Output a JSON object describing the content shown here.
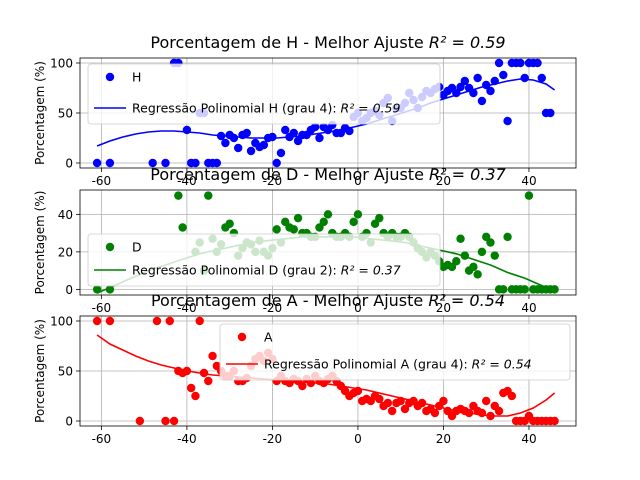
{
  "chart_data": [
    {
      "type": "scatter",
      "title": "Porcentagem de H - Melhor Ajuste",
      "r2_label": "R² = 0.59",
      "xlabel": "",
      "ylabel": "Porcentagem (%)",
      "xlim": [
        -65,
        51
      ],
      "ylim": [
        -5,
        105
      ],
      "xticks": [
        -60,
        -40,
        -20,
        0,
        20,
        40
      ],
      "yticks": [
        0,
        50,
        100
      ],
      "grid": true,
      "legend_position": "upper-left",
      "color": "#0000ff",
      "series": [
        {
          "name": "H",
          "kind": "points",
          "x": [
            -61,
            -58,
            -48,
            -45,
            -43,
            -42,
            -40,
            -39,
            -38,
            -37,
            -36,
            -35,
            -34,
            -33,
            -32,
            -31,
            -30,
            -29,
            -28,
            -27,
            -26,
            -25,
            -24,
            -23,
            -22,
            -21,
            -20,
            -19,
            -18,
            -17,
            -16,
            -15,
            -14,
            -13,
            -12,
            -11,
            -10,
            -9,
            -8,
            -7,
            -6,
            -5,
            -4,
            -3,
            -2,
            -1,
            0,
            1,
            2,
            3,
            4,
            5,
            6,
            7,
            8,
            9,
            10,
            11,
            12,
            13,
            14,
            15,
            16,
            17,
            18,
            19,
            20,
            21,
            22,
            23,
            24,
            25,
            26,
            27,
            28,
            29,
            30,
            31,
            32,
            33,
            34,
            35,
            36,
            37,
            38,
            39,
            40,
            41,
            42,
            43,
            44,
            45
          ],
          "y": [
            0,
            0,
            0,
            0,
            100,
            100,
            33,
            0,
            0,
            50,
            50,
            0,
            0,
            0,
            27,
            20,
            28,
            25,
            15,
            28,
            30,
            12,
            20,
            16,
            18,
            25,
            26,
            0,
            10,
            33,
            26,
            30,
            22,
            28,
            28,
            33,
            36,
            25,
            36,
            33,
            38,
            30,
            30,
            35,
            32,
            46,
            50,
            42,
            45,
            50,
            52,
            48,
            60,
            65,
            42,
            55,
            55,
            60,
            70,
            63,
            55,
            66,
            72,
            70,
            74,
            76,
            68,
            72,
            75,
            70,
            76,
            82,
            75,
            70,
            85,
            62,
            78,
            72,
            82,
            100,
            88,
            42,
            100,
            100,
            100,
            85,
            100,
            100,
            100,
            85,
            50,
            50
          ]
        },
        {
          "name": "Regressão Polinomial H (grau 4)",
          "label_r2": "R² = 0.59",
          "kind": "fit",
          "x": [
            -61,
            -58,
            -55,
            -52,
            -49,
            -46,
            -43,
            -40,
            -37,
            -34,
            -31,
            -28,
            -25,
            -22,
            -19,
            -16,
            -13,
            -10,
            -7,
            -4,
            -1,
            2,
            5,
            8,
            11,
            14,
            17,
            20,
            23,
            26,
            29,
            32,
            35,
            38,
            41,
            44,
            46
          ],
          "y": [
            17,
            22,
            26,
            29,
            31,
            32,
            32,
            31,
            30,
            28,
            27,
            26,
            25,
            25,
            25,
            26,
            27,
            29,
            31,
            33,
            36,
            39,
            43,
            47,
            51,
            55,
            60,
            64,
            68,
            72,
            76,
            79,
            82,
            84,
            83,
            79,
            73
          ]
        }
      ]
    },
    {
      "type": "scatter",
      "title": "Porcentagem de D - Melhor Ajuste",
      "r2_label": "R² = 0.37",
      "xlabel": "",
      "ylabel": "Porcentagem (%)",
      "xlim": [
        -65,
        51
      ],
      "ylim": [
        -3,
        53
      ],
      "xticks": [
        -60,
        -40,
        -20,
        0,
        20,
        40
      ],
      "yticks": [
        0,
        20,
        40
      ],
      "grid": true,
      "legend_position": "center-left",
      "color": "#008000",
      "series": [
        {
          "name": "D",
          "kind": "points",
          "x": [
            -61,
            -58,
            -42,
            -41,
            -38,
            -37,
            -36,
            -35,
            -34,
            -33,
            -32,
            -31,
            -30,
            -29,
            -28,
            -27,
            -26,
            -25,
            -24,
            -23,
            -22,
            -21,
            -20,
            -19,
            -18,
            -17,
            -16,
            -15,
            -14,
            -13,
            -12,
            -11,
            -10,
            -9,
            -8,
            -7,
            -6,
            -5,
            -4,
            -3,
            -2,
            -1,
            0,
            1,
            2,
            3,
            4,
            5,
            6,
            7,
            8,
            9,
            10,
            11,
            12,
            13,
            14,
            15,
            16,
            17,
            18,
            19,
            20,
            21,
            22,
            23,
            24,
            25,
            26,
            27,
            28,
            29,
            30,
            31,
            32,
            33,
            34,
            35,
            36,
            37,
            38,
            39,
            40,
            41,
            42,
            43,
            44,
            45,
            46
          ],
          "y": [
            0,
            0,
            50,
            33,
            20,
            25,
            10,
            50,
            27,
            20,
            24,
            33,
            35,
            30,
            18,
            22,
            25,
            24,
            20,
            26,
            20,
            18,
            22,
            32,
            25,
            36,
            33,
            32,
            38,
            30,
            30,
            28,
            28,
            33,
            36,
            40,
            30,
            28,
            28,
            30,
            28,
            36,
            40,
            28,
            30,
            25,
            35,
            38,
            30,
            28,
            30,
            28,
            28,
            30,
            28,
            25,
            22,
            20,
            17,
            20,
            18,
            15,
            12,
            13,
            12,
            15,
            27,
            18,
            10,
            12,
            8,
            20,
            28,
            25,
            18,
            0,
            0,
            28,
            0,
            0,
            0,
            0,
            50,
            0,
            0,
            0,
            0,
            0,
            0
          ]
        },
        {
          "name": "Regressão Polinomial D (grau 2)",
          "label_r2": "R² = 0.37",
          "kind": "fit",
          "x": [
            -61,
            -57,
            -53,
            -49,
            -45,
            -41,
            -37,
            -33,
            -29,
            -25,
            -21,
            -17,
            -13,
            -9,
            -5,
            -1,
            3,
            7,
            11,
            15,
            19,
            23,
            27,
            31,
            35,
            39,
            43,
            46
          ],
          "y": [
            -2,
            2,
            6,
            10,
            13,
            16,
            19,
            21,
            23,
            25,
            26,
            27,
            28,
            28,
            28,
            28,
            27,
            26,
            25,
            23,
            21,
            19,
            16,
            13,
            9,
            6,
            2,
            -1
          ]
        }
      ]
    },
    {
      "type": "scatter",
      "title": "Porcentagem de A - Melhor Ajuste",
      "r2_label": "R² = 0.54",
      "xlabel": "",
      "ylabel": "Porcentagem (%)",
      "xlim": [
        -65,
        51
      ],
      "ylim": [
        -5,
        105
      ],
      "xticks": [
        -60,
        -40,
        -20,
        0,
        20,
        40
      ],
      "yticks": [
        0,
        50,
        100
      ],
      "grid": true,
      "legend_position": "upper-right",
      "color": "#ff0000",
      "series": [
        {
          "name": "A",
          "kind": "points",
          "x": [
            -61,
            -58,
            -51,
            -47,
            -45,
            -44,
            -43,
            -42,
            -41,
            -40,
            -39,
            -38,
            -37,
            -36,
            -35,
            -34,
            -33,
            -32,
            -31,
            -30,
            -29,
            -28,
            -27,
            -26,
            -25,
            -24,
            -23,
            -22,
            -21,
            -20,
            -19,
            -18,
            -17,
            -16,
            -15,
            -14,
            -13,
            -12,
            -11,
            -10,
            -9,
            -8,
            -7,
            -6,
            -5,
            -4,
            -3,
            -2,
            -1,
            0,
            1,
            2,
            3,
            4,
            5,
            6,
            7,
            8,
            9,
            10,
            11,
            12,
            13,
            14,
            15,
            16,
            17,
            18,
            19,
            20,
            21,
            22,
            23,
            24,
            25,
            26,
            27,
            28,
            29,
            30,
            31,
            32,
            33,
            34,
            35,
            36,
            37,
            38,
            39,
            40,
            41,
            42,
            43,
            44,
            45,
            46
          ],
          "y": [
            100,
            100,
            0,
            100,
            0,
            100,
            0,
            50,
            48,
            50,
            33,
            25,
            100,
            48,
            40,
            65,
            55,
            50,
            45,
            45,
            50,
            40,
            40,
            43,
            55,
            62,
            65,
            60,
            68,
            62,
            40,
            45,
            40,
            38,
            42,
            40,
            35,
            42,
            38,
            45,
            40,
            38,
            42,
            45,
            40,
            35,
            30,
            25,
            28,
            30,
            20,
            22,
            20,
            25,
            22,
            15,
            18,
            10,
            18,
            20,
            12,
            18,
            20,
            15,
            18,
            10,
            12,
            8,
            15,
            20,
            10,
            5,
            10,
            12,
            10,
            8,
            15,
            10,
            8,
            20,
            5,
            15,
            10,
            28,
            30,
            25,
            0,
            0,
            0,
            5,
            0,
            0,
            0,
            0,
            0,
            0
          ]
        },
        {
          "name": "Regressão Polinomial A (grau 4)",
          "label_r2": "R² = 0.54",
          "kind": "fit",
          "x": [
            -61,
            -58,
            -55,
            -52,
            -49,
            -46,
            -43,
            -40,
            -37,
            -34,
            -31,
            -28,
            -25,
            -22,
            -19,
            -16,
            -13,
            -10,
            -7,
            -4,
            -1,
            2,
            5,
            8,
            11,
            14,
            17,
            20,
            23,
            26,
            29,
            32,
            35,
            38,
            41,
            44,
            46
          ],
          "y": [
            86,
            77,
            71,
            65,
            60,
            56,
            53,
            50,
            48,
            46,
            45,
            44,
            43,
            42,
            41,
            40,
            39,
            38,
            37,
            35,
            33,
            31,
            28,
            25,
            22,
            19,
            16,
            13,
            10,
            8,
            6,
            5,
            5,
            8,
            13,
            21,
            28
          ]
        }
      ]
    }
  ]
}
